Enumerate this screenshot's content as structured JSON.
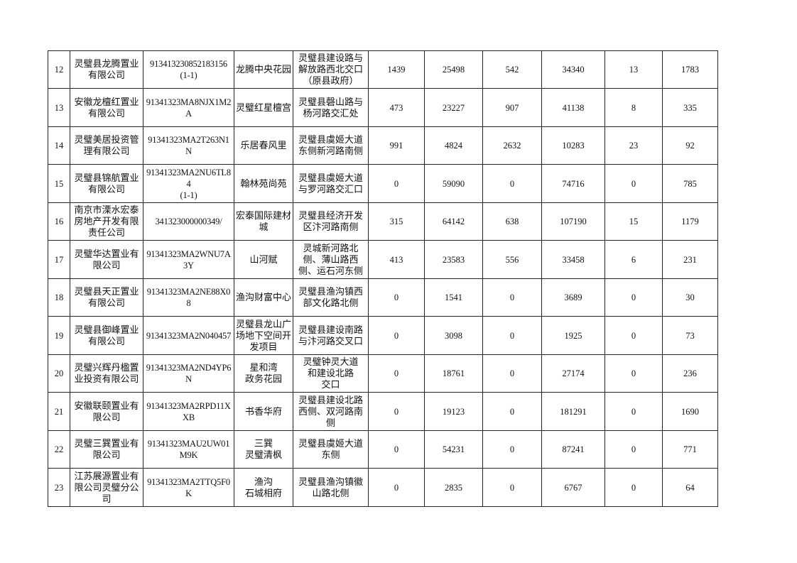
{
  "table": {
    "rows": [
      {
        "no": "12",
        "company": "灵璧县龙腾置业有限公司",
        "code": "913413230852183156\n(1-1)",
        "project": "龙腾中央花园",
        "location": "灵璧县建设路与解放路西北交口（原县政府）",
        "c1": "1439",
        "c2": "25498",
        "c3": "542",
        "c4": "34340",
        "c5": "13",
        "c6": "1783"
      },
      {
        "no": "13",
        "company": "安徽龙檀红置业有限公司",
        "code": "91341323MA8NJX1M2A",
        "project": "灵璧红星檀宫",
        "location": "灵璧县磬山路与杨河路交汇处",
        "c1": "473",
        "c2": "23227",
        "c3": "907",
        "c4": "41138",
        "c5": "8",
        "c6": "335"
      },
      {
        "no": "14",
        "company": "灵璧美居投资管理有限公司",
        "code": "91341323MA2T263N1N",
        "project": "乐居春风里",
        "location": "灵璧县虞姬大道东侧新河路南侧",
        "c1": "991",
        "c2": "4824",
        "c3": "2632",
        "c4": "10283",
        "c5": "23",
        "c6": "92"
      },
      {
        "no": "15",
        "company": "灵璧县锦航置业有限公司",
        "code": "91341323MA2NU6TL84\n(1-1)",
        "project": "翰林苑尚苑",
        "location": "灵璧县虞姬大道与罗河路交汇口",
        "c1": "0",
        "c2": "59090",
        "c3": "0",
        "c4": "74716",
        "c5": "0",
        "c6": "785"
      },
      {
        "no": "16",
        "company": "南京市溧水宏泰房地产开发有限责任公司",
        "code": "341323000000349/",
        "project": "宏泰国际建材城",
        "location": "灵璧县经济开发区汴河路南侧",
        "c1": "315",
        "c2": "64142",
        "c3": "638",
        "c4": "107190",
        "c5": "15",
        "c6": "1179"
      },
      {
        "no": "17",
        "company": "灵璧华达置业有限公司",
        "code": "91341323MA2WNU7A3Y",
        "project": "山河赋",
        "location": "灵城新河路北侧、薄山路西侧、运石河东侧",
        "c1": "413",
        "c2": "23583",
        "c3": "556",
        "c4": "33458",
        "c5": "6",
        "c6": "231"
      },
      {
        "no": "18",
        "company": "灵璧县天正置业有限公司",
        "code": "91341323MA2NE88X08",
        "project": "渔沟财富中心",
        "location": "灵璧县渔沟镇西部文化路北侧",
        "c1": "0",
        "c2": "1541",
        "c3": "0",
        "c4": "3689",
        "c5": "0",
        "c6": "30"
      },
      {
        "no": "19",
        "company": "灵璧县御峰置业有限公司",
        "code": "91341323MA2N040457",
        "project": "灵璧县龙山广场地下空间开发项目",
        "location": "灵璧县建设南路与汴河路交叉口",
        "c1": "0",
        "c2": "3098",
        "c3": "0",
        "c4": "1925",
        "c5": "0",
        "c6": "73"
      },
      {
        "no": "20",
        "company": "灵璧兴辉丹楹置业投资有限公司",
        "code": "91341323MA2ND4YP6N",
        "project": "星和湾\n政务花园",
        "location": "灵璧钟灵大道\n和建设北路\n交口",
        "c1": "0",
        "c2": "18761",
        "c3": "0",
        "c4": "27174",
        "c5": "0",
        "c6": "236"
      },
      {
        "no": "21",
        "company": "安徽联颐置业有限公司",
        "code": "91341323MA2RPD11XXB",
        "project": "书香华府",
        "location": "灵璧县建设北路西侧、双河路南侧",
        "c1": "0",
        "c2": "19123",
        "c3": "0",
        "c4": "181291",
        "c5": "0",
        "c6": "1690"
      },
      {
        "no": "22",
        "company": "灵璧三巽置业有限公司",
        "code": "91341323MAU2UW01M9K",
        "project": "三巽\n灵璧清枫",
        "location": "灵璧县虞姬大道东侧",
        "c1": "0",
        "c2": "54231",
        "c3": "0",
        "c4": "87241",
        "c5": "0",
        "c6": "771"
      },
      {
        "no": "23",
        "company": "江苏展源置业有限公司灵璧分公司",
        "code": "91341323MA2TTQ5F0K",
        "project": "渔沟\n石城相府",
        "location": "灵璧县渔沟镇徽山路北侧",
        "c1": "0",
        "c2": "2835",
        "c3": "0",
        "c4": "6767",
        "c5": "0",
        "c6": "64"
      }
    ]
  }
}
